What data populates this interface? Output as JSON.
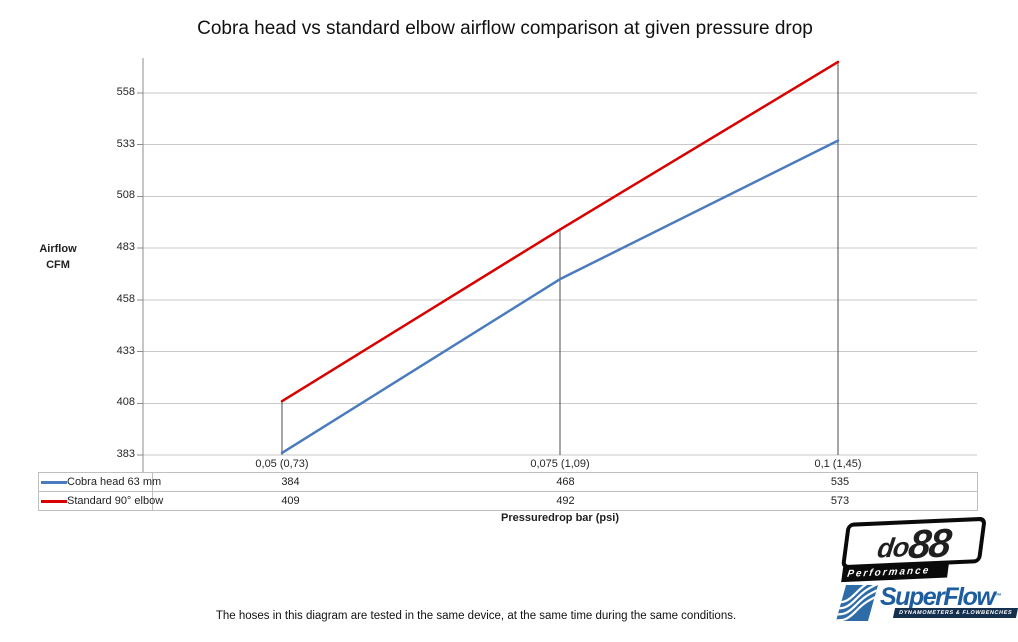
{
  "title": "Cobra head vs standard elbow airflow comparison at given pressure drop",
  "chart_data": {
    "type": "line",
    "title": "Cobra head vs standard elbow airflow comparison at given pressure drop",
    "categories": [
      "0,05 (0,73)",
      "0,075 (1,09)",
      "0,1 (1,45)"
    ],
    "series": [
      {
        "name": "Cobra head 63 mm",
        "color": "#4a7bbf",
        "values": [
          384,
          468,
          535
        ]
      },
      {
        "name": "Standard 90° elbow",
        "color": "#d90000",
        "values": [
          409,
          492,
          573
        ]
      }
    ],
    "xlabel": "Pressuredrop bar (psi)",
    "ylabel": "Airflow CFM",
    "yticks": [
      383,
      408,
      433,
      458,
      483,
      508,
      533,
      558
    ],
    "ylim": [
      383,
      575
    ],
    "grid": true,
    "drop_lines": true,
    "legend_position": "table-left"
  },
  "y_axis": {
    "title_line1": "Airflow",
    "title_line2": "CFM"
  },
  "x_axis": {
    "title": "Pressuredrop bar (psi)"
  },
  "colors": {
    "series_blue": "#4a7bbf",
    "series_red": "#d90000",
    "gridline": "#c9c9c9",
    "axis_line": "#8c8c8c",
    "drop_line": "#4d4d4d",
    "table_border": "#bfbfbf",
    "superflow_blue": "#2e6ca8",
    "superflow_text": "#1d5c9e",
    "logo_black": "#0a0a0a"
  },
  "footer": {
    "note": "The hoses in this diagram are tested in the same device, at the same time during the same conditions."
  },
  "logos": {
    "do88": {
      "text_do": "do",
      "text_88": "88",
      "subtext": "Performance"
    },
    "superflow": {
      "text": "SuperFlow",
      "tm": "™",
      "subtext": "DYNAMOMETERS & FLOWBENCHES"
    }
  }
}
